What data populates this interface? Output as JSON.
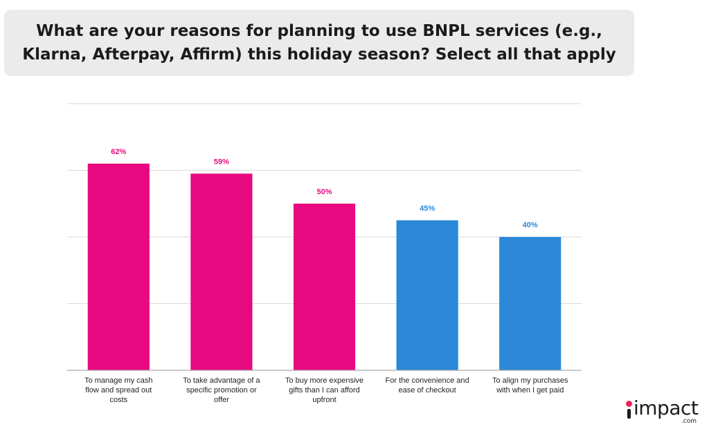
{
  "title": "What are your reasons for planning to use BNPL services (e.g., Klarna, Afterpay, Affirm) this holiday season? Select all that apply",
  "colors": {
    "highlight": "#e8087f",
    "standard": "#2b88d8",
    "grid": "#d9d9d9",
    "axis": "#aaaaaa",
    "logo_dot": "#f0245b"
  },
  "chart_data": {
    "type": "bar",
    "title": "What are your reasons for planning to use BNPL services (e.g., Klarna, Afterpay, Affirm) this holiday season? Select all that apply",
    "xlabel": "",
    "ylabel": "",
    "ylim": [
      0,
      80
    ],
    "yticks": [
      0,
      20,
      40,
      60,
      80
    ],
    "grid": true,
    "categories": [
      "To manage my cash flow and spread out costs",
      "To take advantage of a specific promotion or offer",
      "To buy more expensive gifts than I can afford upfront",
      "For the convenience and ease of checkout",
      "To align my purchases with when I get paid"
    ],
    "category_lines": [
      [
        "To manage my cash",
        "flow and spread out",
        "costs"
      ],
      [
        "To take advantage of a",
        "specific promotion or",
        "offer"
      ],
      [
        "To buy more expensive",
        "gifts than I can afford",
        "upfront"
      ],
      [
        "For the convenience and",
        "ease of checkout"
      ],
      [
        "To align my purchases",
        "with when I get paid"
      ]
    ],
    "values": [
      62,
      59,
      50,
      45,
      40
    ],
    "data_labels": [
      "62%",
      "59%",
      "50%",
      "45%",
      "40%"
    ],
    "highlighted": [
      true,
      true,
      true,
      false,
      false
    ]
  },
  "logo": {
    "word": "impact",
    "tld": ".com"
  }
}
